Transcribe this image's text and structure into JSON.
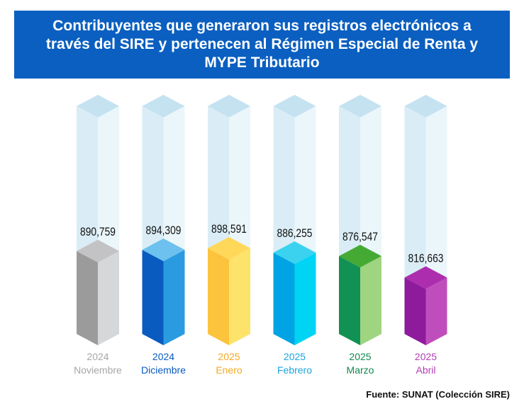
{
  "title": "Contribuyentes que generaron sus registros electrónicos a través del SIRE y pertenecen al Régimen Especial de Renta y MYPE Tributario",
  "source": "Fuente: SUNAT (Colección SIRE)",
  "chart_data": {
    "type": "bar",
    "title": "Contribuyentes que generaron sus registros electrónicos a través del SIRE y pertenecen al Régimen Especial de Renta y MYPE Tributario",
    "categories": [
      "2024 Noviembre",
      "2024 Diciembre",
      "2025 Enero",
      "2025 Febrero",
      "2025 Marzo",
      "2025 Abril"
    ],
    "years": [
      "2024",
      "2024",
      "2025",
      "2025",
      "2025",
      "2025"
    ],
    "months": [
      "Noviembre",
      "Diciembre",
      "Enero",
      "Febrero",
      "Marzo",
      "Abril"
    ],
    "values": [
      890759,
      894309,
      898591,
      886255,
      876547,
      816663
    ],
    "value_labels": [
      "890,759",
      "894,309",
      "898,591",
      "886,255",
      "876,547",
      "816,663"
    ],
    "scale_range": [
      770000,
      930000
    ],
    "colors": {
      "front": [
        "#9b9b9b",
        "#0a5bc0",
        "#fcc33c",
        "#00a4e4",
        "#119154",
        "#8e1a9c"
      ],
      "side": [
        "#d6d7d9",
        "#2a9be0",
        "#fde36a",
        "#00d4f5",
        "#9fd481",
        "#c04dbc"
      ],
      "top": [
        "#c3c3c5",
        "#6cc1ee",
        "#ffd85a",
        "#3ad2ef",
        "#44aa34",
        "#ac2eae"
      ],
      "label": [
        "#a6a6a6",
        "#0a5bc0",
        "#f6a823",
        "#1aa3dd",
        "#0f8a4f",
        "#b43fb4"
      ],
      "ghost_front": "#daedf6",
      "ghost_side": "#ebf6fb",
      "ghost_top": "#c5e2f1"
    }
  }
}
